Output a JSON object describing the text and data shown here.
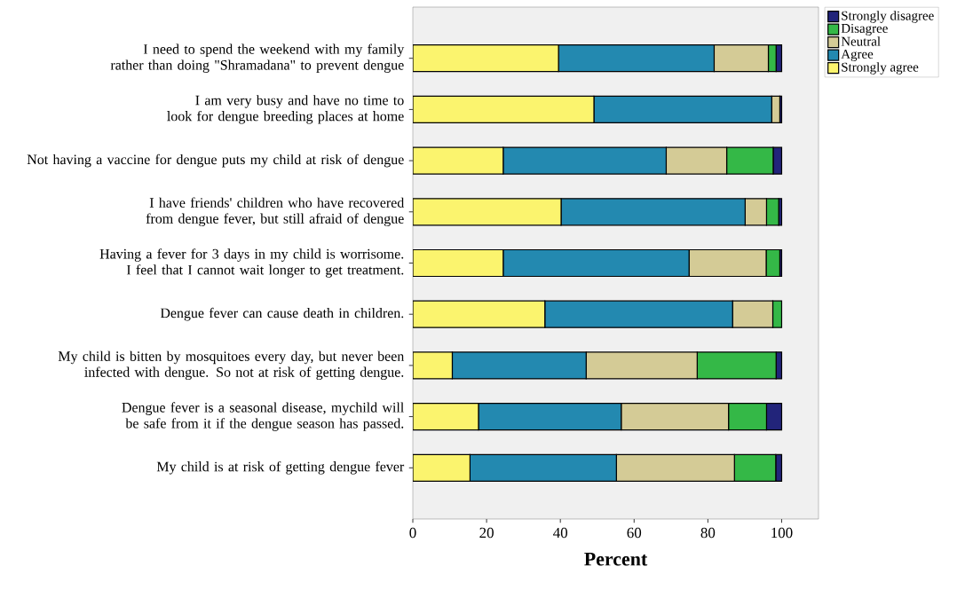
{
  "chart_data": {
    "type": "bar",
    "orientation": "horizontal",
    "stacked": true,
    "categories": [
      "I need to spend the weekend with my family rather than doing \"Shramadana\" to prevent dengue",
      "I am very busy and have no time to look for dengue breeding places at home",
      "Not having a vaccine for dengue puts my child at risk of dengue",
      "I have friends' children who have recovered from dengue fever, but still afraid of dengue",
      "Having a fever for 3 days in my child is worrisome. I feel that I cannot wait longer to get treatment.",
      "Dengue fever can cause death in children.",
      "My child is bitten by mosquitoes every day, but never been infected with dengue. So not at risk of getting dengue.",
      "Dengue fever is a seasonal disease, mychild will be safe from it if the dengue season has passed.",
      "My child is at risk of getting dengue fever"
    ],
    "series": [
      {
        "name": "Strongly agree",
        "color": "#fbf46e",
        "values": [
          39.5,
          49.1,
          24.5,
          40.2,
          24.5,
          35.8,
          10.7,
          17.8,
          15.5
        ]
      },
      {
        "name": "Agree",
        "color": "#2389b0",
        "values": [
          42.2,
          48.2,
          44.2,
          49.9,
          50.4,
          50.9,
          36.3,
          38.7,
          39.7
        ]
      },
      {
        "name": "Neutral",
        "color": "#d4cb96",
        "values": [
          14.7,
          2.2,
          16.4,
          5.8,
          20.9,
          10.9,
          30.1,
          29.1,
          32.0
        ]
      },
      {
        "name": "Disagree",
        "color": "#34b847",
        "values": [
          2.1,
          0,
          12.6,
          3.3,
          3.7,
          2.4,
          21.4,
          10.3,
          11.2
        ]
      },
      {
        "name": "Strongly disagree",
        "color": "#22247a",
        "values": [
          1.5,
          0.5,
          2.3,
          0.8,
          0.5,
          0,
          1.5,
          4.1,
          1.6
        ]
      }
    ],
    "xlim": [
      0,
      110
    ],
    "xticks": [
      0,
      20,
      40,
      60,
      80,
      100
    ],
    "xlabel": "Percent",
    "legend": "top right"
  }
}
